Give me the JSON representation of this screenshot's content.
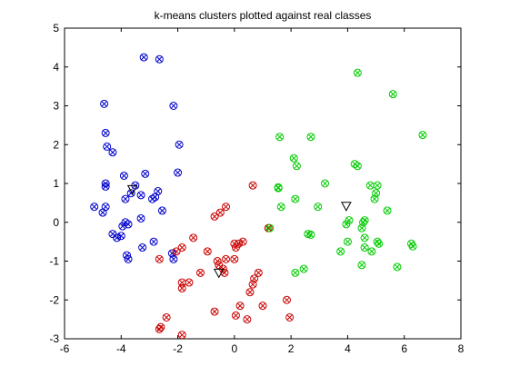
{
  "chart_data": {
    "type": "scatter",
    "title": "k-means clusters plotted against real classes",
    "xlabel": "",
    "ylabel": "",
    "xlim": [
      -6,
      8
    ],
    "ylim": [
      -3,
      5
    ],
    "xticks": [
      "-6",
      "-4",
      "-2",
      "0",
      "2",
      "4",
      "6",
      "8"
    ],
    "yticks": [
      "-3",
      "-2",
      "-1",
      "0",
      "1",
      "2",
      "3",
      "4",
      "5"
    ],
    "grid": false,
    "legend": "none",
    "colors": {
      "series": [
        "#0000cc",
        "#cc0000",
        "#00cc00"
      ],
      "centroid": "#000000",
      "axes": "#000000"
    },
    "series": [
      {
        "color": "#0000cc",
        "points": [
          [
            -3.2,
            4.25
          ],
          [
            -2.65,
            4.2
          ],
          [
            -4.6,
            3.05
          ],
          [
            -2.15,
            3.0
          ],
          [
            -4.55,
            2.3
          ],
          [
            -4.5,
            1.95
          ],
          [
            -1.95,
            2.0
          ],
          [
            -4.3,
            1.8
          ],
          [
            -3.15,
            1.25
          ],
          [
            -2.0,
            1.28
          ],
          [
            -3.9,
            1.2
          ],
          [
            -4.55,
            1.0
          ],
          [
            -4.55,
            0.92
          ],
          [
            -3.5,
            0.95
          ],
          [
            -2.7,
            0.8
          ],
          [
            -3.3,
            0.7
          ],
          [
            -2.9,
            0.6
          ],
          [
            -2.8,
            0.65
          ],
          [
            -3.85,
            0.6
          ],
          [
            -3.65,
            0.75
          ],
          [
            -4.95,
            0.4
          ],
          [
            -4.55,
            0.4
          ],
          [
            -4.65,
            0.25
          ],
          [
            -2.55,
            0.3
          ],
          [
            -3.3,
            0.1
          ],
          [
            -3.85,
            0.0
          ],
          [
            -3.95,
            -0.1
          ],
          [
            -3.75,
            -0.05
          ],
          [
            -4.3,
            -0.3
          ],
          [
            -4.0,
            -0.35
          ],
          [
            -4.15,
            -0.4
          ],
          [
            -3.25,
            -0.65
          ],
          [
            -2.85,
            -0.5
          ],
          [
            -3.8,
            -0.85
          ],
          [
            -3.75,
            -0.95
          ],
          [
            -2.15,
            -0.95
          ],
          [
            -2.2,
            -0.8
          ]
        ]
      },
      {
        "color": "#cc0000",
        "points": [
          [
            0.65,
            0.95
          ],
          [
            -0.3,
            0.4
          ],
          [
            -0.5,
            0.25
          ],
          [
            -0.7,
            0.15
          ],
          [
            1.2,
            -0.15
          ],
          [
            -1.45,
            -0.4
          ],
          [
            0.3,
            -0.5
          ],
          [
            0.15,
            -0.55
          ],
          [
            0.0,
            -0.55
          ],
          [
            0.05,
            -0.65
          ],
          [
            -2.05,
            -0.75
          ],
          [
            -1.85,
            -0.65
          ],
          [
            -0.95,
            -0.75
          ],
          [
            -0.6,
            -1.0
          ],
          [
            -0.3,
            -0.95
          ],
          [
            0.0,
            -0.95
          ],
          [
            -0.55,
            -1.1
          ],
          [
            -0.4,
            -1.2
          ],
          [
            -1.2,
            -1.3
          ],
          [
            -0.35,
            -1.3
          ],
          [
            0.85,
            -1.3
          ],
          [
            0.7,
            -1.45
          ],
          [
            -1.85,
            -1.55
          ],
          [
            -1.6,
            -1.55
          ],
          [
            -1.85,
            -1.7
          ],
          [
            0.65,
            -1.6
          ],
          [
            0.55,
            -1.8
          ],
          [
            0.2,
            -2.15
          ],
          [
            1.0,
            -2.15
          ],
          [
            1.85,
            -2.0
          ],
          [
            -0.7,
            -2.3
          ],
          [
            0.05,
            -2.4
          ],
          [
            -2.4,
            -2.45
          ],
          [
            0.45,
            -2.5
          ],
          [
            1.95,
            -2.45
          ],
          [
            -2.6,
            -2.7
          ],
          [
            -2.65,
            -2.75
          ],
          [
            -1.85,
            -2.9
          ],
          [
            -2.65,
            -0.95
          ]
        ]
      },
      {
        "color": "#00cc00",
        "points": [
          [
            4.35,
            3.85
          ],
          [
            5.6,
            3.3
          ],
          [
            6.65,
            2.25
          ],
          [
            1.6,
            2.2
          ],
          [
            2.7,
            2.2
          ],
          [
            2.1,
            1.65
          ],
          [
            2.2,
            1.45
          ],
          [
            4.25,
            1.5
          ],
          [
            4.35,
            1.45
          ],
          [
            3.2,
            1.0
          ],
          [
            4.8,
            0.95
          ],
          [
            5.05,
            0.95
          ],
          [
            1.55,
            0.9
          ],
          [
            1.55,
            0.88
          ],
          [
            5.0,
            0.75
          ],
          [
            4.95,
            0.6
          ],
          [
            2.15,
            0.6
          ],
          [
            1.65,
            0.4
          ],
          [
            2.95,
            0.4
          ],
          [
            5.4,
            0.3
          ],
          [
            4.05,
            0.05
          ],
          [
            4.55,
            0.0
          ],
          [
            4.6,
            0.05
          ],
          [
            1.25,
            -0.15
          ],
          [
            3.95,
            -0.05
          ],
          [
            4.5,
            -0.15
          ],
          [
            2.6,
            -0.3
          ],
          [
            2.7,
            -0.32
          ],
          [
            4.6,
            -0.4
          ],
          [
            5.05,
            -0.5
          ],
          [
            5.1,
            -0.55
          ],
          [
            4.0,
            -0.5
          ],
          [
            6.25,
            -0.55
          ],
          [
            6.3,
            -0.62
          ],
          [
            4.6,
            -0.65
          ],
          [
            3.75,
            -0.75
          ],
          [
            4.85,
            -0.75
          ],
          [
            4.5,
            -1.1
          ],
          [
            5.75,
            -1.15
          ],
          [
            2.45,
            -1.2
          ],
          [
            2.15,
            -1.3
          ]
        ]
      }
    ],
    "centroids": [
      [
        -3.6,
        0.85
      ],
      [
        -0.55,
        -1.3
      ],
      [
        3.95,
        0.42
      ]
    ]
  }
}
